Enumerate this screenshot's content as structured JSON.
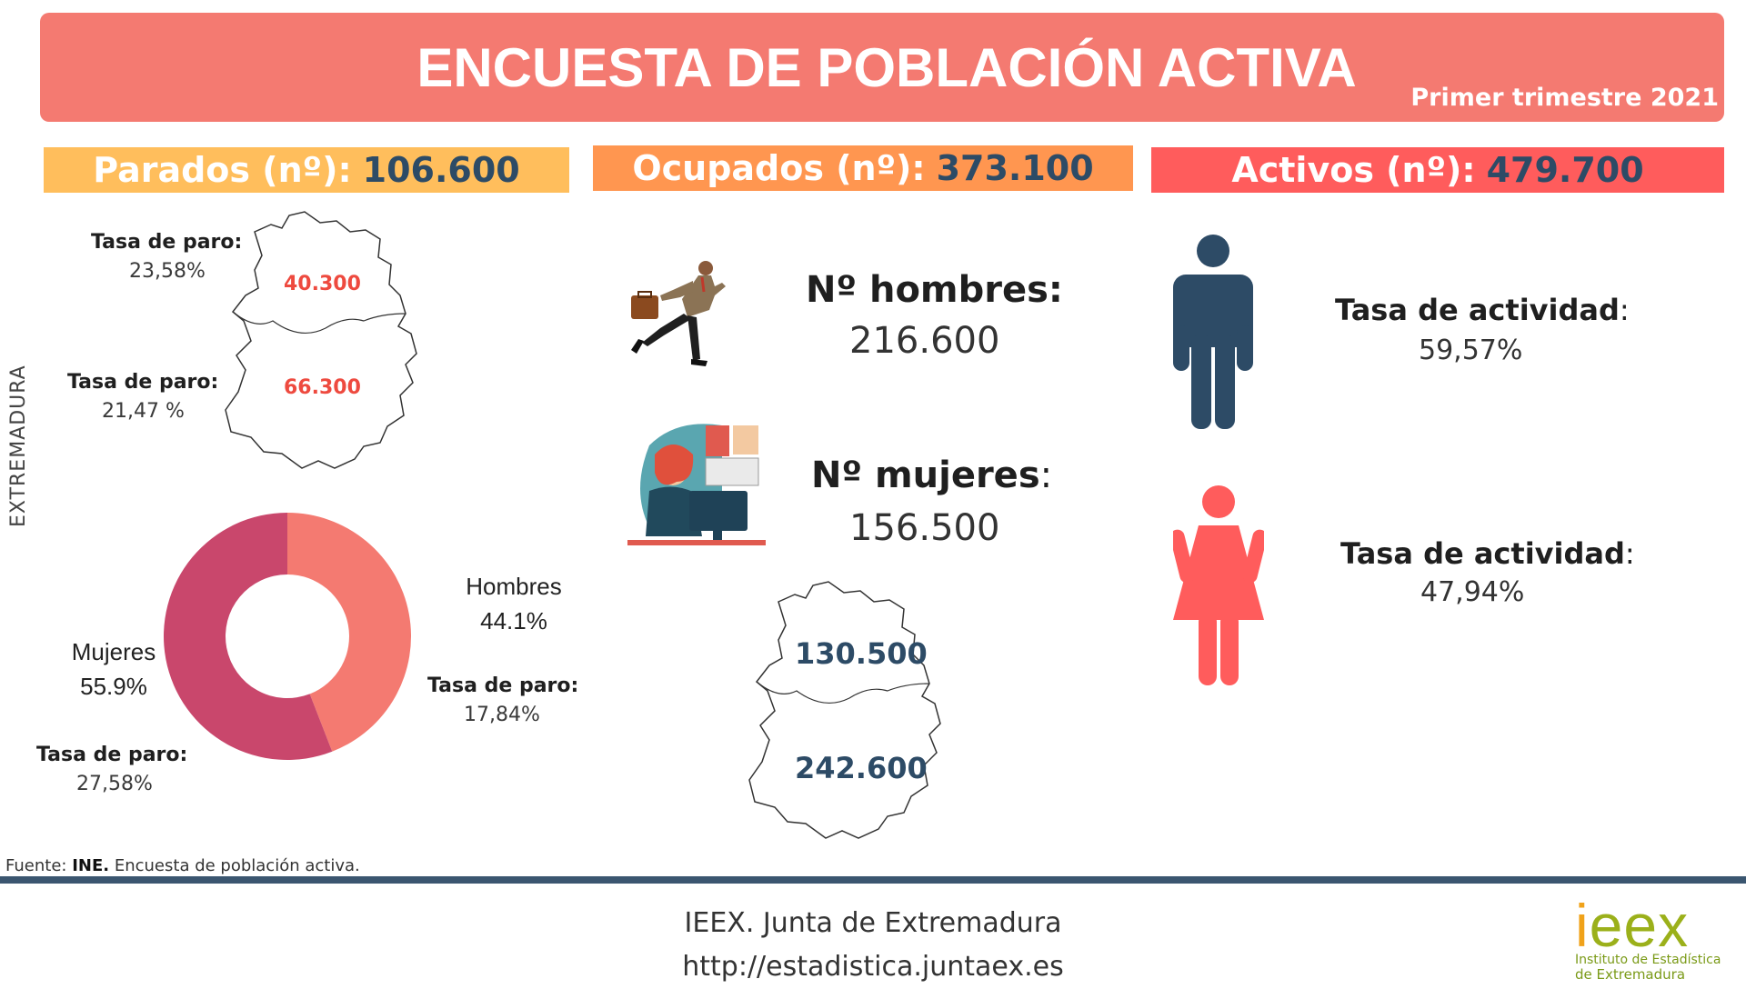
{
  "header": {
    "title": "ENCUESTA DE POBLACIÓN ACTIVA",
    "subtitle": "Primer trimestre 2021",
    "colors": {
      "banner": "#f47a71",
      "parados": "#ffbe5c",
      "ocupados": "#ff9650",
      "activos": "#ff5c5c",
      "number": "#2d4b66"
    }
  },
  "stats": {
    "parados": {
      "label": "Parados (nº):",
      "value": "106.600"
    },
    "ocupados": {
      "label": "Ocupados (nº):",
      "value": "373.100"
    },
    "activos": {
      "label": "Activos (nº):",
      "value": "479.700"
    }
  },
  "parados_map": {
    "region_label": "EXTREMADURA",
    "north": {
      "rate_label": "Tasa de paro:",
      "rate_value": "23,58%",
      "count": "40.300"
    },
    "south": {
      "rate_label": "Tasa de paro:",
      "rate_value": "21,47 %",
      "count": "66.300"
    }
  },
  "donut": {
    "men_rate_label": "Tasa de paro:",
    "men_rate_value": "17,84%",
    "women_rate_label": "Tasa de paro:",
    "women_rate_value": "27,58%"
  },
  "chart_data": {
    "type": "pie",
    "categories": [
      "Hombres",
      "Mujeres"
    ],
    "values": [
      44.1,
      55.9
    ],
    "labels": [
      "44.1%",
      "55.9%"
    ],
    "colors": [
      "#f47a71",
      "#c9476c"
    ],
    "title": ""
  },
  "ocupados": {
    "men_label": "Nº hombres:",
    "men_value": "216.600",
    "women_label": "Nº mujeres",
    "women_colon": ":",
    "women_value": "156.500",
    "map_north": "130.500",
    "map_south": "242.600"
  },
  "activos": {
    "men_rate_label": "Tasa de actividad",
    "men_rate_colon": ":",
    "men_rate_value": "59,57%",
    "women_rate_label": "Tasa de actividad",
    "women_rate_colon": ":",
    "women_rate_value": "47,94%",
    "man_icon": "man-icon",
    "woman_icon": "woman-icon"
  },
  "footer": {
    "source_prefix": "Fuente:",
    "source_org": "INE.",
    "source_text": "Encuesta de población activa.",
    "line1": "IEEX. Junta de Extremadura",
    "line2": "http://estadistica.juntaex.es",
    "logo_text": "ieex",
    "logo_sub1": "Instituto de Estadística",
    "logo_sub2": "de Extremadura"
  }
}
